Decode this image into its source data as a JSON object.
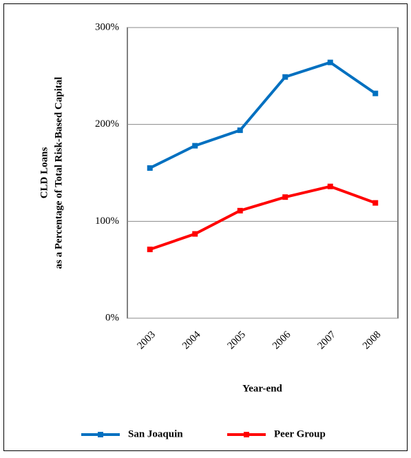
{
  "chart_data": {
    "type": "line",
    "y_label": [
      "CLD Loans",
      "as a Percentage of Total Risk-Based Capital"
    ],
    "x_label": "Year-end",
    "categories": [
      "2003",
      "2004",
      "2005",
      "2006",
      "2007",
      "2008"
    ],
    "series": [
      {
        "name": "San Joaquin",
        "color": "#0070c0",
        "values": [
          155,
          178,
          194,
          249,
          264,
          232
        ]
      },
      {
        "name": "Peer Group",
        "color": "#ff0000",
        "values": [
          71,
          87,
          111,
          125,
          136,
          119
        ]
      }
    ],
    "ylim": [
      0,
      300
    ],
    "yticks": [
      {
        "value": 0,
        "label": "0%"
      },
      {
        "value": 100,
        "label": "100%"
      },
      {
        "value": 200,
        "label": "200%"
      },
      {
        "value": 300,
        "label": "300%"
      }
    ],
    "grid": true,
    "legend": "bottom"
  }
}
